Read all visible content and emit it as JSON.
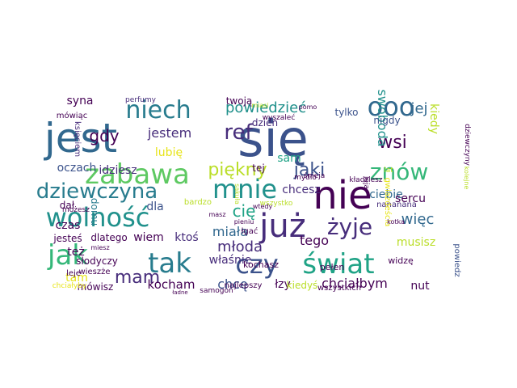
{
  "palette": {
    "background": "#ffffff",
    "dark_purple": "#440154",
    "indigo": "#472d7b",
    "blue": "#3b528b",
    "steel_blue": "#31688e",
    "teal_blue": "#287c8e",
    "teal": "#21918c",
    "sea_green": "#20a386",
    "green": "#35b779",
    "light_green": "#5ec962",
    "lime": "#90d743",
    "yellow_green": "#bade28",
    "yellow": "#e7e419"
  },
  "words": [
    {
      "text": "się",
      "color": "#3b528b"
    },
    {
      "text": "jest",
      "color": "#31688e"
    },
    {
      "text": "nie",
      "color": "#440154"
    },
    {
      "text": "zabawa",
      "color": "#5ec962"
    },
    {
      "text": "mnie",
      "color": "#21918c"
    },
    {
      "text": "już",
      "color": "#472d7b"
    },
    {
      "text": "tak",
      "color": "#287c8e"
    },
    {
      "text": "czy",
      "color": "#3b528b"
    },
    {
      "text": "świat",
      "color": "#20a386"
    },
    {
      "text": "jak",
      "color": "#35b779"
    },
    {
      "text": "wolność",
      "color": "#21918c"
    },
    {
      "text": "niech",
      "color": "#287c8e"
    },
    {
      "text": "ref",
      "color": "#472d7b"
    },
    {
      "text": "ooo",
      "color": "#31688e"
    },
    {
      "text": "znów",
      "color": "#35b779"
    },
    {
      "text": "dziewczyna",
      "color": "#287c8e"
    },
    {
      "text": "żyje",
      "color": "#472d7b"
    },
    {
      "text": "piękny",
      "color": "#bade28"
    },
    {
      "text": "wsi",
      "color": "#440154"
    },
    {
      "text": "jaki",
      "color": "#3b528b"
    },
    {
      "text": "mam",
      "color": "#472d7b"
    },
    {
      "text": "powiedzieć",
      "color": "#21918c"
    },
    {
      "text": "jej",
      "color": "#31688e"
    },
    {
      "text": "gdy",
      "color": "#440154"
    },
    {
      "text": "cię",
      "color": "#20a386"
    },
    {
      "text": "jestem",
      "color": "#472d7b"
    },
    {
      "text": "kocham",
      "color": "#440154"
    },
    {
      "text": "chcę",
      "color": "#3b528b"
    },
    {
      "text": "więc",
      "color": "#31688e"
    },
    {
      "text": "swoboda",
      "color": "#21918c"
    },
    {
      "text": "chciałbym",
      "color": "#440154"
    },
    {
      "text": "młoda",
      "color": "#472d7b"
    },
    {
      "text": "miała",
      "color": "#31688e"
    },
    {
      "text": "tego",
      "color": "#440154"
    },
    {
      "text": "oczach",
      "color": "#3b528b"
    },
    {
      "text": "syna",
      "color": "#440154"
    },
    {
      "text": "lubię",
      "color": "#e7e419"
    },
    {
      "text": "idziesz",
      "color": "#472d7b"
    },
    {
      "text": "ciebie",
      "color": "#31688e"
    },
    {
      "text": "sercu",
      "color": "#440154"
    },
    {
      "text": "musisz",
      "color": "#bade28"
    },
    {
      "text": "chcesz",
      "color": "#472d7b"
    },
    {
      "text": "czas",
      "color": "#440154"
    },
    {
      "text": "dla",
      "color": "#3b528b"
    },
    {
      "text": "tam",
      "color": "#e7e419"
    },
    {
      "text": "też",
      "color": "#440154"
    },
    {
      "text": "właśnie",
      "color": "#472d7b"
    },
    {
      "text": "nut",
      "color": "#440154"
    },
    {
      "text": "nigdy",
      "color": "#3b528b"
    },
    {
      "text": "kiedy",
      "color": "#bade28"
    },
    {
      "text": "sam",
      "color": "#20a386"
    },
    {
      "text": "dał",
      "color": "#440154"
    },
    {
      "text": "wiem",
      "color": "#440154"
    },
    {
      "text": "ktoś",
      "color": "#472d7b"
    },
    {
      "text": "łzy",
      "color": "#440154"
    },
    {
      "text": "tej",
      "color": "#440154"
    },
    {
      "text": "dzień",
      "color": "#472d7b"
    },
    {
      "text": "twoją",
      "color": "#440154"
    },
    {
      "text": "tylko",
      "color": "#3b528b"
    },
    {
      "text": "domu",
      "color": "#287c8e"
    },
    {
      "text": "dlatego",
      "color": "#440154"
    },
    {
      "text": "słodyczy",
      "color": "#440154"
    },
    {
      "text": "kochasz",
      "color": "#440154"
    },
    {
      "text": "pełen",
      "color": "#440154"
    },
    {
      "text": "mówisz",
      "color": "#440154"
    },
    {
      "text": "najlepszy",
      "color": "#440154"
    },
    {
      "text": "kiedyś",
      "color": "#bade28"
    },
    {
      "text": "wszystkich",
      "color": "#440154"
    },
    {
      "text": "nananana",
      "color": "#472d7b"
    },
    {
      "text": "widzę",
      "color": "#440154"
    },
    {
      "text": "powiedz",
      "color": "#3b528b"
    },
    {
      "text": "bardzo",
      "color": "#bade28"
    },
    {
      "text": "wszystko",
      "color": "#bade28"
    },
    {
      "text": "gwiazdeścia",
      "color": "#e7e419"
    },
    {
      "text": "jesteś",
      "color": "#440154"
    },
    {
      "text": "wieszże",
      "color": "#440154"
    },
    {
      "text": "mówiąc",
      "color": "#440154"
    },
    {
      "text": "perfumy",
      "color": "#472d7b"
    },
    {
      "text": "księciem",
      "color": "#472d7b"
    },
    {
      "text": "wyszaleć",
      "color": "#440154"
    },
    {
      "text": "pomo",
      "color": "#440154"
    },
    {
      "text": "mydło",
      "color": "#440154"
    },
    {
      "text": "śnieja",
      "color": "#440154"
    },
    {
      "text": "dziewczyny",
      "color": "#440154"
    },
    {
      "text": "lat",
      "color": "#bade28"
    },
    {
      "text": "leją",
      "color": "#440154"
    },
    {
      "text": "kładziesz",
      "color": "#440154"
    },
    {
      "text": "możesz",
      "color": "#440154"
    },
    {
      "text": "chciałyby",
      "color": "#e7e419"
    },
    {
      "text": "samogon",
      "color": "#440154"
    },
    {
      "text": "łgać",
      "color": "#440154"
    },
    {
      "text": "leje",
      "color": "#440154"
    },
    {
      "text": "ładne",
      "color": "#440154"
    },
    {
      "text": "wtedy",
      "color": "#440154"
    },
    {
      "text": "pieniu",
      "color": "#440154"
    },
    {
      "text": "kotka",
      "color": "#440154"
    },
    {
      "text": "masz",
      "color": "#440154"
    },
    {
      "text": "miesz",
      "color": "#440154"
    },
    {
      "text": "sakuła",
      "color": "#bade28"
    },
    {
      "text": "kolejne",
      "color": "#bade28"
    },
    {
      "text": "miasi",
      "color": "#bade28"
    }
  ]
}
